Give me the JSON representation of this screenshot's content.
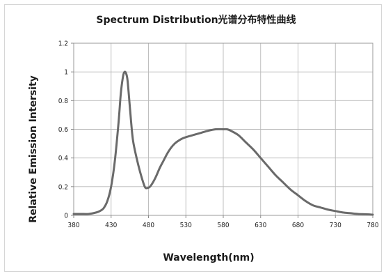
{
  "chart_data": {
    "type": "line",
    "title": "Spectrum Distribution光谱分布特性曲线",
    "xlabel": "Wavelength(nm)",
    "ylabel": "Relative Emission Intersity",
    "xlim": [
      380,
      780
    ],
    "ylim": [
      0,
      1.2
    ],
    "x_ticks": [
      "380",
      "430",
      "480",
      "530",
      "580",
      "630",
      "680",
      "730",
      "780"
    ],
    "y_ticks": [
      "0",
      "0.2",
      "0.4",
      "0.6",
      "0.8",
      "1",
      "1.2"
    ],
    "grid": true,
    "legend": "none",
    "line_color": "#6a6a6a",
    "series": [
      {
        "x": [
          380,
          390,
          400,
          410,
          415,
          420,
          425,
          430,
          435,
          440,
          443,
          446,
          448,
          450,
          452,
          455,
          458,
          460,
          465,
          470,
          475,
          478,
          482,
          486,
          490,
          495,
          500,
          505,
          510,
          515,
          520,
          525,
          530,
          540,
          550,
          560,
          570,
          580,
          585,
          590,
          600,
          610,
          620,
          630,
          640,
          650,
          660,
          670,
          680,
          690,
          700,
          710,
          720,
          730,
          740,
          750,
          760,
          770,
          780
        ],
        "y": [
          0.01,
          0.01,
          0.01,
          0.02,
          0.03,
          0.05,
          0.1,
          0.2,
          0.38,
          0.65,
          0.85,
          0.97,
          1.0,
          0.99,
          0.94,
          0.76,
          0.58,
          0.5,
          0.38,
          0.28,
          0.2,
          0.19,
          0.2,
          0.23,
          0.27,
          0.33,
          0.38,
          0.43,
          0.47,
          0.5,
          0.52,
          0.535,
          0.545,
          0.56,
          0.575,
          0.59,
          0.6,
          0.6,
          0.6,
          0.59,
          0.56,
          0.51,
          0.46,
          0.4,
          0.34,
          0.28,
          0.23,
          0.18,
          0.14,
          0.1,
          0.07,
          0.055,
          0.04,
          0.03,
          0.02,
          0.015,
          0.01,
          0.008,
          0.005
        ]
      }
    ]
  }
}
